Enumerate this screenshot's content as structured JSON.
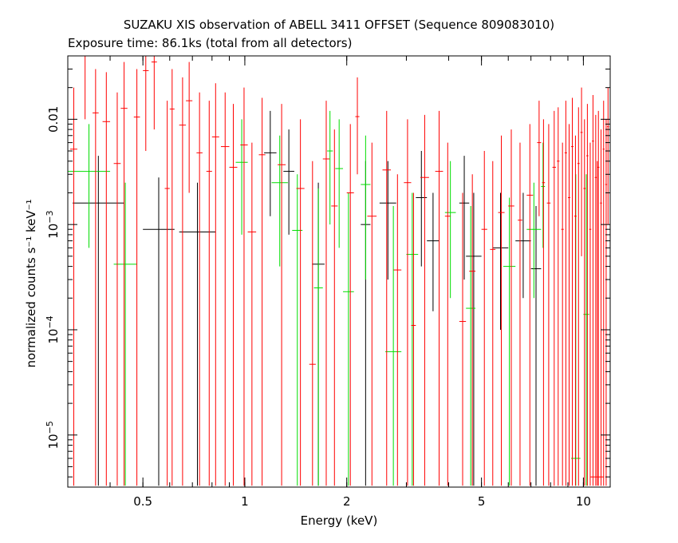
{
  "chart_data": {
    "type": "scatter",
    "title": "SUZAKU XIS observation of ABELL 3411 OFFSET (Sequence 809083010)",
    "subtitle": "Exposure time: 86.1ks (total from all detectors)",
    "xlabel": "Energy (keV)",
    "ylabel": "normalized counts s⁻¹ keV⁻¹",
    "xscale": "log",
    "yscale": "log",
    "xlim": [
      0.3,
      12
    ],
    "ylim": [
      3.2e-06,
      0.04
    ],
    "xticks": [
      {
        "v": 0.5,
        "label": "0.5"
      },
      {
        "v": 1,
        "label": "1"
      },
      {
        "v": 2,
        "label": "2"
      },
      {
        "v": 5,
        "label": "5"
      },
      {
        "v": 10,
        "label": "10"
      }
    ],
    "yticks": [
      {
        "v": 1e-05,
        "base": "10",
        "exp": "−5"
      },
      {
        "v": 0.0001,
        "base": "10",
        "exp": "−4"
      },
      {
        "v": 0.001,
        "base": "10",
        "exp": "−3"
      },
      {
        "v": 0.01,
        "base": "0.01",
        "exp": ""
      }
    ],
    "grid": false,
    "legend": "none",
    "series": [
      {
        "color": "#000000",
        "points": [
          [
            0.31,
            0.44,
            0.0016,
            3.3e-06,
            0.0045
          ],
          [
            0.5,
            0.62,
            0.0009,
            3.3e-06,
            0.0028
          ],
          [
            0.64,
            0.82,
            0.00085,
            3.3e-06,
            0.0025
          ],
          [
            1.14,
            1.24,
            0.0048,
            0.0012,
            0.012
          ],
          [
            1.3,
            1.4,
            0.0032,
            0.0008,
            0.008
          ],
          [
            1.58,
            1.72,
            0.00042,
            3.3e-06,
            0.0025
          ],
          [
            2.2,
            2.35,
            0.001,
            3.3e-06,
            0.004
          ],
          [
            2.5,
            2.8,
            0.0016,
            0.0003,
            0.004
          ],
          [
            3.2,
            3.45,
            0.0018,
            0.0004,
            0.005
          ],
          [
            3.45,
            3.75,
            0.0007,
            0.00015,
            0.002
          ],
          [
            4.3,
            4.6,
            0.0016,
            0.0003,
            0.0045
          ],
          [
            4.5,
            5.0,
            0.0005,
            3.3e-06,
            0.002
          ],
          [
            5.4,
            6.0,
            0.0006,
            0.0001,
            0.002
          ],
          [
            6.3,
            7.0,
            0.0007,
            0.0002,
            0.002
          ],
          [
            7.0,
            7.5,
            0.00038,
            3.3e-06,
            0.0015
          ]
        ]
      },
      {
        "color": "#00dd00",
        "points": [
          [
            0.3,
            0.4,
            0.0032,
            0.0006,
            0.009
          ],
          [
            0.41,
            0.48,
            0.00042,
            3.3e-06,
            0.0025
          ],
          [
            0.94,
            1.02,
            0.0039,
            0.0008,
            0.01
          ],
          [
            1.2,
            1.34,
            0.0025,
            0.0004,
            0.007
          ],
          [
            1.38,
            1.48,
            0.00088,
            3.3e-06,
            0.003
          ],
          [
            1.6,
            1.7,
            0.00025,
            3.3e-06,
            0.0022
          ],
          [
            1.75,
            1.82,
            0.005,
            0.001,
            0.012
          ],
          [
            1.85,
            1.95,
            0.0034,
            0.0006,
            0.01
          ],
          [
            1.95,
            2.1,
            0.00023,
            3.3e-06,
            0.002
          ],
          [
            2.2,
            2.35,
            0.0024,
            0.0003,
            0.007
          ],
          [
            2.6,
            2.9,
            6.2e-05,
            3.3e-06,
            0.0015
          ],
          [
            3.0,
            3.25,
            0.00052,
            3.3e-06,
            0.002
          ],
          [
            3.9,
            4.2,
            0.0013,
            0.0002,
            0.004
          ],
          [
            4.5,
            4.8,
            0.00016,
            3.3e-06,
            0.0015
          ],
          [
            5.8,
            6.3,
            0.0004,
            3.3e-06,
            0.0018
          ],
          [
            6.8,
            7.5,
            0.0009,
            0.0002,
            0.0025
          ],
          [
            7.5,
            7.7,
            0.0023,
            0.0006,
            0.006
          ],
          [
            9.2,
            9.8,
            6e-06,
            3.3e-06,
            0.003
          ],
          [
            10.0,
            10.4,
            0.00014,
            3.3e-06,
            0.003
          ]
        ]
      },
      {
        "color": "#ff0000",
        "points": [
          [
            0.305,
            0.32,
            0.0052,
            3.3e-06,
            0.02
          ],
          [
            0.33,
            0.345,
            0.04,
            0.01,
            0.04
          ],
          [
            0.355,
            0.37,
            0.0115,
            3.3e-06,
            0.03
          ],
          [
            0.38,
            0.4,
            0.0095,
            3.3e-06,
            0.028
          ],
          [
            0.41,
            0.43,
            0.0038,
            3.3e-06,
            0.018
          ],
          [
            0.43,
            0.45,
            0.0127,
            3.3e-06,
            0.035
          ],
          [
            0.47,
            0.49,
            0.0105,
            3.3e-06,
            0.03
          ],
          [
            0.5,
            0.52,
            0.029,
            0.005,
            0.04
          ],
          [
            0.53,
            0.55,
            0.035,
            0.008,
            0.04
          ],
          [
            0.58,
            0.6,
            0.0022,
            3.3e-06,
            0.015
          ],
          [
            0.6,
            0.62,
            0.0125,
            3.3e-06,
            0.03
          ],
          [
            0.64,
            0.67,
            0.0088,
            3.3e-06,
            0.025
          ],
          [
            0.67,
            0.7,
            0.015,
            0.002,
            0.035
          ],
          [
            0.72,
            0.75,
            0.0048,
            3.3e-06,
            0.018
          ],
          [
            0.77,
            0.8,
            0.0032,
            3.3e-06,
            0.015
          ],
          [
            0.8,
            0.84,
            0.0068,
            3.3e-06,
            0.022
          ],
          [
            0.85,
            0.9,
            0.0055,
            3.3e-06,
            0.018
          ],
          [
            0.9,
            0.95,
            0.0035,
            3.3e-06,
            0.014
          ],
          [
            0.97,
            1.02,
            0.0057,
            3.3e-06,
            0.02
          ],
          [
            1.02,
            1.08,
            0.00085,
            3.3e-06,
            0.006
          ],
          [
            1.1,
            1.15,
            0.0046,
            3.3e-06,
            0.016
          ],
          [
            1.25,
            1.32,
            0.0037,
            3.3e-06,
            0.014
          ],
          [
            1.42,
            1.5,
            0.0022,
            3.3e-06,
            0.01
          ],
          [
            1.55,
            1.62,
            4.7e-05,
            3.3e-06,
            0.004
          ],
          [
            1.7,
            1.78,
            0.0042,
            3.3e-06,
            0.015
          ],
          [
            1.8,
            1.88,
            0.0015,
            3.3e-06,
            0.008
          ],
          [
            2.0,
            2.1,
            0.002,
            3.3e-06,
            0.009
          ],
          [
            2.12,
            2.18,
            0.0106,
            0.003,
            0.025
          ],
          [
            2.3,
            2.45,
            0.0012,
            3.3e-06,
            0.006
          ],
          [
            2.55,
            2.7,
            0.0033,
            3.3e-06,
            0.012
          ],
          [
            2.75,
            2.9,
            0.00037,
            3.3e-06,
            0.003
          ],
          [
            2.95,
            3.1,
            0.0025,
            3.3e-06,
            0.01
          ],
          [
            3.1,
            3.2,
            0.00011,
            3.3e-06,
            0.002
          ],
          [
            3.3,
            3.5,
            0.0028,
            3.3e-06,
            0.011
          ],
          [
            3.65,
            3.85,
            0.0032,
            3.3e-06,
            0.012
          ],
          [
            3.9,
            4.05,
            0.0012,
            3.3e-06,
            0.006
          ],
          [
            4.3,
            4.5,
            0.00012,
            3.3e-06,
            0.002
          ],
          [
            4.6,
            4.8,
            0.00036,
            3.3e-06,
            0.003
          ],
          [
            5.0,
            5.2,
            0.0009,
            3.3e-06,
            0.005
          ],
          [
            5.3,
            5.5,
            0.00058,
            3.3e-06,
            0.004
          ],
          [
            5.6,
            5.85,
            0.0013,
            3.3e-06,
            0.007
          ],
          [
            6.0,
            6.25,
            0.0015,
            3.3e-06,
            0.008
          ],
          [
            6.4,
            6.6,
            0.0011,
            3.3e-06,
            0.006
          ],
          [
            6.8,
            7.1,
            0.0019,
            3.3e-06,
            0.009
          ],
          [
            7.3,
            7.5,
            0.006,
            0.0012,
            0.015
          ],
          [
            7.55,
            7.7,
            0.0025,
            3.3e-06,
            0.01
          ],
          [
            7.8,
            8.0,
            0.0016,
            3.3e-06,
            0.009
          ],
          [
            8.1,
            8.3,
            0.0035,
            3.3e-06,
            0.012
          ],
          [
            8.35,
            8.5,
            0.004,
            3.3e-06,
            0.013
          ],
          [
            8.6,
            8.75,
            0.0009,
            3.3e-06,
            0.006
          ],
          [
            8.8,
            8.95,
            0.0048,
            3.3e-06,
            0.015
          ],
          [
            9.0,
            9.15,
            0.0018,
            3.3e-06,
            0.009
          ],
          [
            9.2,
            9.35,
            0.0055,
            3.3e-06,
            0.016
          ],
          [
            9.4,
            9.55,
            0.0012,
            3.3e-06,
            0.007
          ],
          [
            9.6,
            9.75,
            0.0038,
            3.3e-06,
            0.013
          ],
          [
            9.8,
            9.95,
            0.0075,
            0.0005,
            0.02
          ],
          [
            10.0,
            10.15,
            0.0022,
            3.3e-06,
            0.01
          ],
          [
            10.2,
            10.35,
            0.0045,
            3.3e-06,
            0.014
          ],
          [
            10.4,
            10.55,
            0.0009,
            3.3e-06,
            0.006
          ],
          [
            10.6,
            10.75,
            0.0062,
            3.3e-06,
            0.017
          ],
          [
            10.8,
            10.95,
            0.0028,
            3.3e-06,
            0.011
          ],
          [
            11.0,
            11.15,
            0.0035,
            3.3e-06,
            0.012
          ],
          [
            11.2,
            11.35,
            0.0016,
            3.3e-06,
            0.008
          ],
          [
            11.4,
            11.55,
            0.0052,
            3.3e-06,
            0.015
          ],
          [
            11.6,
            11.75,
            0.0024,
            3.3e-06,
            0.01
          ],
          [
            11.75,
            11.9,
            0.0085,
            0.001,
            0.02
          ],
          [
            10.5,
            11.5,
            4e-06,
            3.3e-06,
            0.004
          ]
        ]
      }
    ]
  }
}
